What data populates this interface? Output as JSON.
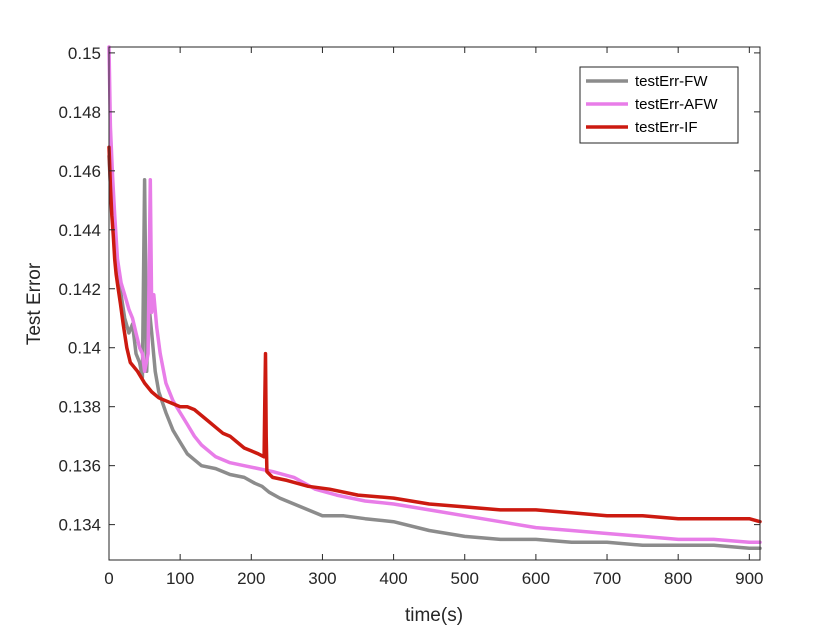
{
  "chart_data": {
    "type": "line",
    "xlabel": "time(s)",
    "ylabel": "Test Error",
    "xlim": [
      0,
      915
    ],
    "ylim": [
      0.1328,
      0.1502
    ],
    "xticks": [
      0,
      100,
      200,
      300,
      400,
      500,
      600,
      700,
      800,
      900
    ],
    "xtick_labels": [
      "0",
      "100",
      "200",
      "300",
      "400",
      "500",
      "600",
      "700",
      "800",
      "900"
    ],
    "yticks": [
      0.134,
      0.136,
      0.138,
      0.14,
      0.142,
      0.144,
      0.146,
      0.148,
      0.15
    ],
    "ytick_labels": [
      "0.134",
      "0.136",
      "0.138",
      "0.14",
      "0.142",
      "0.144",
      "0.146",
      "0.148",
      "0.15"
    ],
    "grid": false,
    "legend_position": "top-right",
    "series": [
      {
        "name": "testErr-FW",
        "color": "#8c8c8c",
        "x": [
          0,
          2,
          5,
          8,
          12,
          17,
          22,
          28,
          33,
          38,
          43,
          47,
          50,
          53,
          56,
          60,
          65,
          70,
          80,
          90,
          100,
          110,
          120,
          130,
          150,
          170,
          190,
          205,
          215,
          225,
          240,
          260,
          280,
          300,
          330,
          360,
          400,
          450,
          500,
          550,
          600,
          650,
          700,
          750,
          800,
          850,
          900,
          915
        ],
        "y": [
          0.1465,
          0.1455,
          0.1445,
          0.1435,
          0.1425,
          0.1418,
          0.141,
          0.1405,
          0.1408,
          0.1398,
          0.1395,
          0.139,
          0.1457,
          0.1392,
          0.1415,
          0.1405,
          0.1392,
          0.1385,
          0.1378,
          0.1372,
          0.1368,
          0.1364,
          0.1362,
          0.136,
          0.1359,
          0.1357,
          0.1356,
          0.1354,
          0.1353,
          0.1351,
          0.1349,
          0.1347,
          0.1345,
          0.1343,
          0.1343,
          0.1342,
          0.1341,
          0.1338,
          0.1336,
          0.1335,
          0.1335,
          0.1334,
          0.1334,
          0.1333,
          0.1333,
          0.1333,
          0.1332,
          0.1332
        ]
      },
      {
        "name": "testErr-AFW",
        "color": "#e87de8",
        "x": [
          0,
          2,
          5,
          8,
          12,
          17,
          22,
          28,
          33,
          38,
          43,
          47,
          50,
          55,
          58,
          60,
          63,
          67,
          72,
          80,
          90,
          100,
          110,
          120,
          130,
          150,
          170,
          190,
          210,
          230,
          260,
          290,
          320,
          360,
          400,
          450,
          500,
          550,
          600,
          650,
          700,
          750,
          800,
          850,
          900,
          915
        ],
        "y": [
          0.1502,
          0.1475,
          0.1458,
          0.1445,
          0.143,
          0.1422,
          0.1418,
          0.1413,
          0.141,
          0.1405,
          0.14,
          0.1398,
          0.1392,
          0.1398,
          0.1457,
          0.1412,
          0.1418,
          0.1407,
          0.1398,
          0.1388,
          0.1382,
          0.1378,
          0.1374,
          0.137,
          0.1367,
          0.1363,
          0.1361,
          0.136,
          0.1359,
          0.1358,
          0.1356,
          0.1352,
          0.135,
          0.1348,
          0.1347,
          0.1345,
          0.1343,
          0.1341,
          0.1339,
          0.1338,
          0.1337,
          0.1336,
          0.1335,
          0.1335,
          0.1334,
          0.1334
        ]
      },
      {
        "name": "testErr-IF",
        "color": "#cc1a10",
        "x": [
          0,
          2,
          4,
          6,
          8,
          10,
          13,
          16,
          20,
          25,
          30,
          40,
          50,
          60,
          70,
          80,
          90,
          100,
          110,
          120,
          130,
          140,
          150,
          160,
          170,
          180,
          190,
          200,
          210,
          218,
          219,
          220,
          221,
          222,
          230,
          250,
          280,
          310,
          350,
          400,
          450,
          500,
          550,
          600,
          650,
          700,
          750,
          800,
          850,
          900,
          915
        ],
        "y": [
          0.1468,
          0.1455,
          0.1445,
          0.1438,
          0.143,
          0.1425,
          0.142,
          0.1415,
          0.1408,
          0.14,
          0.1395,
          0.1392,
          0.1388,
          0.1385,
          0.1383,
          0.1382,
          0.1381,
          0.138,
          0.138,
          0.1379,
          0.1377,
          0.1375,
          0.1373,
          0.1371,
          0.137,
          0.1368,
          0.1366,
          0.1365,
          0.1364,
          0.1363,
          0.1382,
          0.1398,
          0.137,
          0.1358,
          0.1356,
          0.1355,
          0.1353,
          0.1352,
          0.135,
          0.1349,
          0.1347,
          0.1346,
          0.1345,
          0.1345,
          0.1344,
          0.1343,
          0.1343,
          0.1342,
          0.1342,
          0.1342,
          0.1341
        ]
      }
    ]
  }
}
